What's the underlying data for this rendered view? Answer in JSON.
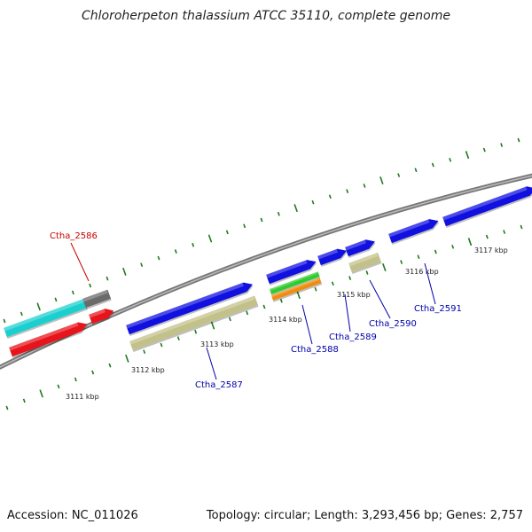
{
  "title": "Chloroherpeton thalassium ATCC 35110, complete genome",
  "footer": {
    "accession": "Accession: NC_011026",
    "stats": "Topology: circular; Length: 3,293,456 bp; Genes: 2,757"
  },
  "colors": {
    "backbone": "#8c8c8c",
    "tick": "#1f7a1f",
    "label_highlight": "#cc0000",
    "label_normal": "#0000aa"
  },
  "ticks": [
    {
      "label": "3111 kbp"
    },
    {
      "label": "3112 kbp"
    },
    {
      "label": "3113 kbp"
    },
    {
      "label": "3114 kbp"
    },
    {
      "label": "3115 kbp"
    },
    {
      "label": "3116 kbp"
    },
    {
      "label": "3117 kbp"
    }
  ],
  "genes": [
    {
      "name": "Ctha_2586",
      "highlight": true
    },
    {
      "name": "Ctha_2587",
      "highlight": false
    },
    {
      "name": "Ctha_2588",
      "highlight": false
    },
    {
      "name": "Ctha_2589",
      "highlight": false
    },
    {
      "name": "Ctha_2590",
      "highlight": false
    },
    {
      "name": "Ctha_2591",
      "highlight": false
    }
  ],
  "features": [
    {
      "color": "#1ccfcf"
    },
    {
      "color": "#e8141b"
    },
    {
      "color": "#6b6b6b"
    },
    {
      "color": "#e8141b"
    },
    {
      "color": "#1010e0"
    },
    {
      "color": "#c3c18a"
    },
    {
      "color": "#1010e0"
    },
    {
      "color": "#2ecc2e"
    },
    {
      "color": "#f08c0f"
    },
    {
      "color": "#1010e0"
    },
    {
      "color": "#1010e0"
    },
    {
      "color": "#c3c18a"
    },
    {
      "color": "#1010e0"
    },
    {
      "color": "#1010e0"
    }
  ]
}
